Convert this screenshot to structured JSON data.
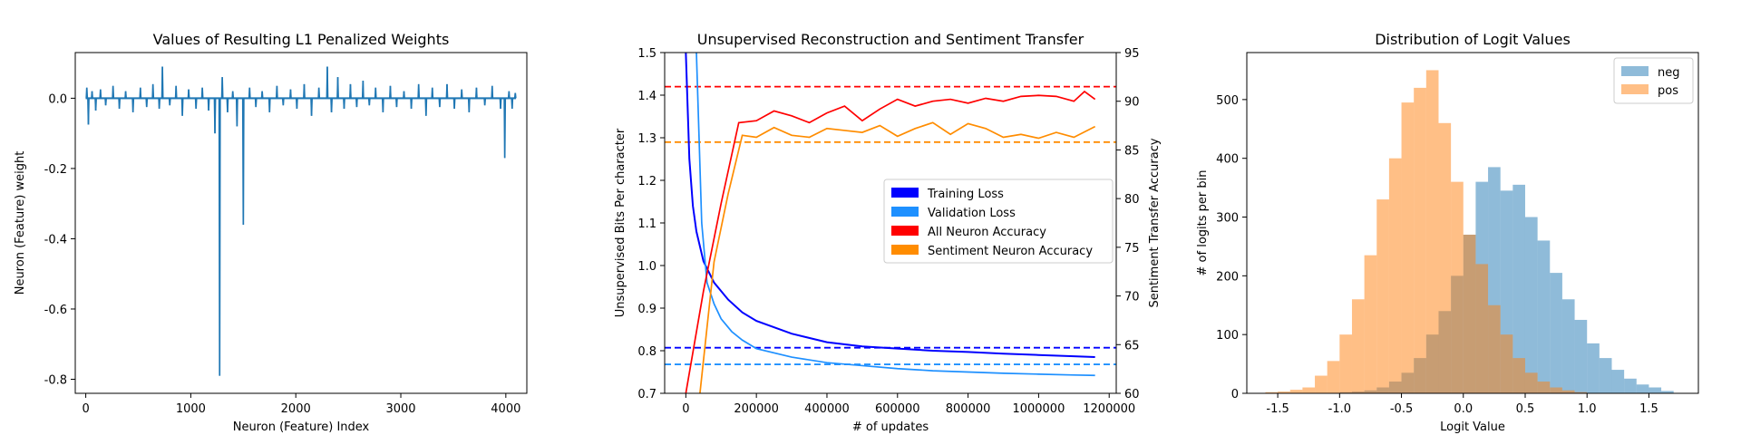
{
  "chart_data": [
    {
      "type": "line",
      "title": "Values of Resulting L1 Penalized Weights",
      "xlabel": "Neuron (Feature) Index",
      "ylabel": "Neuron (Feature) weight",
      "xlim": [
        -100,
        4200
      ],
      "ylim": [
        -0.84,
        0.13
      ],
      "xticks": [
        0,
        1000,
        2000,
        3000,
        4000
      ],
      "yticks": [
        -0.8,
        -0.6,
        -0.4,
        -0.2,
        0.0
      ],
      "color": "#1f77b4",
      "spikes": [
        {
          "x": 10,
          "y": 0.03
        },
        {
          "x": 25,
          "y": -0.075
        },
        {
          "x": 60,
          "y": 0.02
        },
        {
          "x": 95,
          "y": -0.035
        },
        {
          "x": 140,
          "y": 0.025
        },
        {
          "x": 190,
          "y": -0.02
        },
        {
          "x": 260,
          "y": 0.035
        },
        {
          "x": 320,
          "y": -0.03
        },
        {
          "x": 380,
          "y": 0.02
        },
        {
          "x": 450,
          "y": -0.04
        },
        {
          "x": 520,
          "y": 0.03
        },
        {
          "x": 580,
          "y": -0.025
        },
        {
          "x": 640,
          "y": 0.04
        },
        {
          "x": 700,
          "y": -0.03
        },
        {
          "x": 730,
          "y": 0.09
        },
        {
          "x": 800,
          "y": -0.02
        },
        {
          "x": 860,
          "y": 0.035
        },
        {
          "x": 920,
          "y": -0.05
        },
        {
          "x": 980,
          "y": 0.025
        },
        {
          "x": 1050,
          "y": -0.03
        },
        {
          "x": 1110,
          "y": 0.03
        },
        {
          "x": 1170,
          "y": -0.035
        },
        {
          "x": 1230,
          "y": -0.1
        },
        {
          "x": 1275,
          "y": -0.79
        },
        {
          "x": 1300,
          "y": 0.06
        },
        {
          "x": 1350,
          "y": -0.04
        },
        {
          "x": 1400,
          "y": 0.02
        },
        {
          "x": 1440,
          "y": -0.08
        },
        {
          "x": 1500,
          "y": -0.36
        },
        {
          "x": 1560,
          "y": 0.03
        },
        {
          "x": 1620,
          "y": -0.025
        },
        {
          "x": 1680,
          "y": 0.02
        },
        {
          "x": 1750,
          "y": -0.04
        },
        {
          "x": 1820,
          "y": 0.035
        },
        {
          "x": 1880,
          "y": -0.02
        },
        {
          "x": 1950,
          "y": 0.025
        },
        {
          "x": 2010,
          "y": -0.03
        },
        {
          "x": 2080,
          "y": 0.04
        },
        {
          "x": 2150,
          "y": -0.05
        },
        {
          "x": 2220,
          "y": 0.03
        },
        {
          "x": 2300,
          "y": 0.09
        },
        {
          "x": 2340,
          "y": -0.04
        },
        {
          "x": 2400,
          "y": 0.06
        },
        {
          "x": 2460,
          "y": -0.03
        },
        {
          "x": 2520,
          "y": 0.04
        },
        {
          "x": 2580,
          "y": -0.025
        },
        {
          "x": 2640,
          "y": 0.05
        },
        {
          "x": 2700,
          "y": -0.02
        },
        {
          "x": 2760,
          "y": 0.03
        },
        {
          "x": 2830,
          "y": -0.04
        },
        {
          "x": 2900,
          "y": 0.035
        },
        {
          "x": 2960,
          "y": -0.025
        },
        {
          "x": 3030,
          "y": 0.02
        },
        {
          "x": 3100,
          "y": -0.03
        },
        {
          "x": 3170,
          "y": 0.04
        },
        {
          "x": 3240,
          "y": -0.05
        },
        {
          "x": 3300,
          "y": 0.03
        },
        {
          "x": 3370,
          "y": -0.025
        },
        {
          "x": 3440,
          "y": 0.04
        },
        {
          "x": 3510,
          "y": -0.03
        },
        {
          "x": 3580,
          "y": 0.025
        },
        {
          "x": 3650,
          "y": -0.04
        },
        {
          "x": 3720,
          "y": 0.03
        },
        {
          "x": 3800,
          "y": -0.02
        },
        {
          "x": 3870,
          "y": 0.035
        },
        {
          "x": 3950,
          "y": -0.03
        },
        {
          "x": 3990,
          "y": -0.17
        },
        {
          "x": 4030,
          "y": 0.02
        },
        {
          "x": 4060,
          "y": -0.03
        },
        {
          "x": 4090,
          "y": 0.015
        }
      ]
    },
    {
      "type": "line",
      "title": "Unsupervised Reconstruction and Sentiment Transfer",
      "xlabel": "# of updates",
      "ylabel": "Unsupervised Bits Per character",
      "ylabel_right": "Sentiment Transfer Accuracy",
      "xlim": [
        -60000,
        1220000
      ],
      "ylim": [
        0.7,
        1.5
      ],
      "ylim_right": [
        60,
        95
      ],
      "xticks": [
        0,
        200000,
        400000,
        600000,
        800000,
        1000000,
        1200000
      ],
      "yticks": [
        0.7,
        0.8,
        0.9,
        1.0,
        1.1,
        1.2,
        1.3,
        1.4,
        1.5
      ],
      "yticks_right": [
        60,
        65,
        70,
        75,
        80,
        85,
        90,
        95
      ],
      "series": [
        {
          "name": "Training Loss",
          "axis": "left",
          "color": "#0000ff",
          "x": [
            0,
            10000,
            20000,
            30000,
            50000,
            80000,
            120000,
            160000,
            200000,
            300000,
            400000,
            500000,
            600000,
            700000,
            800000,
            900000,
            1000000,
            1100000,
            1160000
          ],
          "y": [
            1.5,
            1.25,
            1.14,
            1.08,
            1.01,
            0.96,
            0.92,
            0.89,
            0.87,
            0.84,
            0.82,
            0.81,
            0.805,
            0.8,
            0.797,
            0.793,
            0.79,
            0.787,
            0.785
          ]
        },
        {
          "name": "Validation Loss",
          "axis": "left",
          "color": "#1e90ff",
          "x": [
            30000,
            45000,
            60000,
            80000,
            100000,
            130000,
            160000,
            200000,
            300000,
            400000,
            500000,
            600000,
            700000,
            800000,
            900000,
            1000000,
            1100000,
            1160000
          ],
          "y": [
            1.5,
            1.1,
            0.96,
            0.91,
            0.875,
            0.845,
            0.825,
            0.805,
            0.785,
            0.772,
            0.765,
            0.758,
            0.753,
            0.75,
            0.747,
            0.745,
            0.743,
            0.742
          ]
        },
        {
          "name": "All Neuron Accuracy",
          "axis": "right",
          "color": "#ff0000",
          "x": [
            0,
            50000,
            100000,
            150000,
            200000,
            250000,
            300000,
            350000,
            400000,
            450000,
            500000,
            550000,
            600000,
            650000,
            700000,
            750000,
            800000,
            850000,
            900000,
            950000,
            1000000,
            1050000,
            1100000,
            1130000,
            1160000
          ],
          "y": [
            60,
            70.5,
            79.5,
            87.8,
            88.0,
            89.0,
            88.5,
            87.8,
            88.8,
            89.5,
            88.0,
            89.2,
            90.2,
            89.5,
            90.0,
            90.2,
            89.8,
            90.3,
            90.0,
            90.5,
            90.6,
            90.5,
            90.0,
            91.0,
            90.2
          ]
        },
        {
          "name": "Sentiment Neuron Accuracy",
          "axis": "right",
          "color": "#ff8c00",
          "x": [
            40000,
            80000,
            120000,
            160000,
            200000,
            250000,
            300000,
            350000,
            400000,
            450000,
            500000,
            550000,
            600000,
            650000,
            700000,
            750000,
            800000,
            850000,
            900000,
            950000,
            1000000,
            1050000,
            1100000,
            1160000
          ],
          "y": [
            60,
            73.5,
            80.5,
            86.5,
            86.3,
            87.3,
            86.5,
            86.3,
            87.2,
            87.0,
            86.8,
            87.5,
            86.4,
            87.2,
            87.8,
            86.6,
            87.7,
            87.2,
            86.3,
            86.6,
            86.2,
            86.8,
            86.3,
            87.4
          ]
        }
      ],
      "reference_lines": [
        {
          "axis": "right",
          "value": 91.5,
          "color": "#ff0000"
        },
        {
          "axis": "right",
          "value": 85.8,
          "color": "#ff8c00"
        },
        {
          "axis": "left",
          "value": 0.807,
          "color": "#0000ff"
        },
        {
          "axis": "left",
          "value": 0.768,
          "color": "#1e90ff"
        }
      ],
      "legend": "center-right"
    },
    {
      "type": "bar",
      "title": "Distribution of Logit Values",
      "xlabel": "Logit Value",
      "ylabel": "# of logits per bin",
      "xlim": [
        -1.75,
        1.9
      ],
      "ylim": [
        0,
        580
      ],
      "xticks": [
        -1.5,
        -1.0,
        -0.5,
        0.0,
        0.5,
        1.0,
        1.5
      ],
      "yticks": [
        0,
        100,
        200,
        300,
        400,
        500
      ],
      "bin_width": 0.1,
      "series": [
        {
          "name": "neg",
          "color": "#1f77b4",
          "bin_starts": [
            -1.0,
            -0.9,
            -0.8,
            -0.7,
            -0.6,
            -0.5,
            -0.4,
            -0.3,
            -0.2,
            -0.1,
            0.0,
            0.1,
            0.2,
            0.3,
            0.4,
            0.5,
            0.6,
            0.7,
            0.8,
            0.9,
            1.0,
            1.1,
            1.2,
            1.3,
            1.4,
            1.5,
            1.6
          ],
          "values": [
            2,
            3,
            5,
            10,
            20,
            35,
            60,
            100,
            140,
            200,
            270,
            360,
            385,
            345,
            355,
            300,
            260,
            205,
            160,
            125,
            85,
            60,
            40,
            25,
            15,
            10,
            4
          ]
        },
        {
          "name": "pos",
          "color": "#ff7f0e",
          "bin_starts": [
            -1.6,
            -1.5,
            -1.4,
            -1.3,
            -1.2,
            -1.1,
            -1.0,
            -0.9,
            -0.8,
            -0.7,
            -0.6,
            -0.5,
            -0.4,
            -0.3,
            -0.2,
            -0.1,
            0.0,
            0.1,
            0.2,
            0.3,
            0.4,
            0.5,
            0.6,
            0.7,
            0.8,
            0.9
          ],
          "values": [
            2,
            3,
            6,
            10,
            30,
            55,
            100,
            160,
            235,
            330,
            400,
            495,
            520,
            550,
            460,
            360,
            270,
            220,
            150,
            100,
            60,
            35,
            20,
            10,
            5,
            2
          ]
        }
      ],
      "legend": "top-right"
    }
  ]
}
